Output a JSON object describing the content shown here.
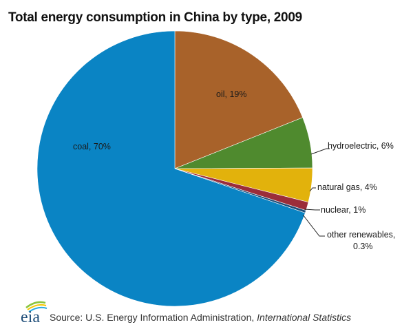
{
  "chart_data": {
    "type": "pie",
    "title": "Total energy consumption in China by type, 2009",
    "start_angle_deg": 0,
    "direction": "clockwise",
    "slices": [
      {
        "name": "oil",
        "value": 19,
        "label": "oil, 19%",
        "color": "#a8622a",
        "label_position": "inside"
      },
      {
        "name": "hydroelectric",
        "value": 6,
        "label": "hydroelectric, 6%",
        "color": "#4f8a2e",
        "label_position": "outside"
      },
      {
        "name": "natural gas",
        "value": 4,
        "label": "natural gas, 4%",
        "color": "#e2b20c",
        "label_position": "outside"
      },
      {
        "name": "nuclear",
        "value": 1,
        "label": "nuclear, 1%",
        "color": "#9b2d3a",
        "label_position": "outside"
      },
      {
        "name": "other renewables",
        "value": 0.3,
        "label_line1": "other renewables,",
        "label_line2": "0.3%",
        "color": "#1f4e79",
        "label_position": "outside"
      },
      {
        "name": "coal",
        "value": 70,
        "label": "coal, 70%",
        "color": "#0a84c4",
        "label_position": "inside"
      }
    ]
  },
  "footer": {
    "logo_text": "eia",
    "source_prefix": "Source: U.S. Energy Information Administration, ",
    "source_italic": "International  Statistics"
  }
}
